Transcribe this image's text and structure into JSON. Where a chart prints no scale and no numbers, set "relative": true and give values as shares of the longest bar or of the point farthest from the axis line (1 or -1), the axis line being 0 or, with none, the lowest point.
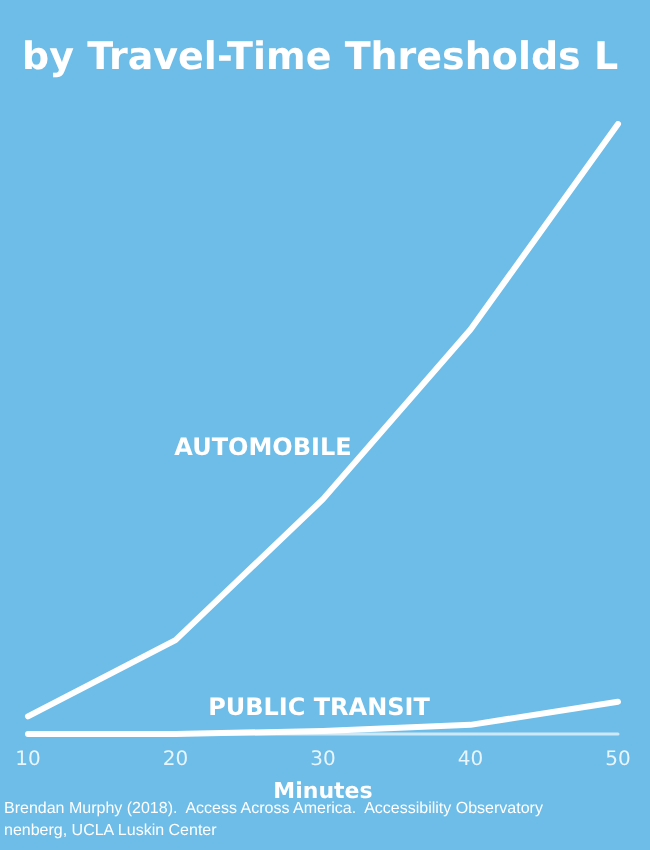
{
  "chart_data": {
    "type": "line",
    "title": "by Travel-Time Thresholds L",
    "xlabel": "Minutes",
    "relative": true,
    "x": [
      10,
      20,
      30,
      40,
      50
    ],
    "xlim": [
      10,
      50
    ],
    "xticks": [
      10,
      20,
      30,
      40,
      50
    ],
    "grid": false,
    "legend": false,
    "marker": "none",
    "line_style": "solid",
    "series": [
      {
        "name": "AUTOMOBILE",
        "color": "#ffffff",
        "values": [
          0.029,
          0.154,
          0.385,
          0.663,
          1
        ]
      },
      {
        "name": "PUBLIC TRANSIT",
        "color": "#ffffff",
        "values": [
          0,
          0,
          0.005,
          0.015,
          0.053
        ]
      }
    ],
    "annotations": [
      "Brendan Murphy (2018).  Access Across America.  Accessibility Observatory",
      "nenberg, UCLA Luskin Center"
    ]
  }
}
